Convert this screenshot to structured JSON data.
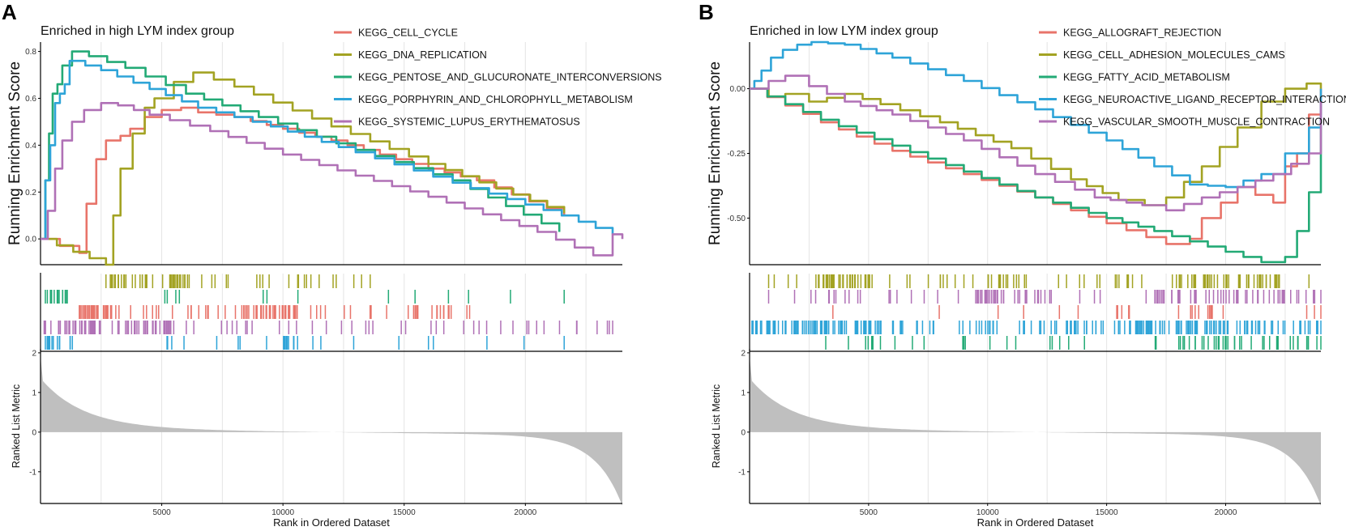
{
  "colors": {
    "red": "#E8746A",
    "olive": "#A3A323",
    "green": "#23AA76",
    "blue": "#2EA4D8",
    "purple": "#B071B6",
    "metric": "#BFBFBF",
    "grid": "#E4E4E4"
  },
  "chart_data": [
    {
      "type": "line",
      "panel_label": "A",
      "title": "Enriched in high LYM index group",
      "ylabel": "Running Enrichment Score",
      "ylim": [
        -0.11,
        0.84
      ],
      "yticks": [
        0.0,
        0.2,
        0.4,
        0.6,
        0.8
      ],
      "ytick_labels": [
        "0.0",
        "0.2",
        "0.4",
        "0.6",
        "0.8"
      ],
      "xlabel": "Rank in Ordered Dataset",
      "xlim": [
        0,
        24000
      ],
      "xticks": [
        5000,
        10000,
        15000,
        20000
      ],
      "xtick_labels": [
        "5000",
        "10000",
        "15000",
        "20000"
      ],
      "legend_position": "top",
      "series": [
        {
          "name": "KEGG_CELL_CYCLE",
          "color": "red",
          "x": [
            0,
            1600,
            1900,
            2300,
            2700,
            3300,
            3700,
            4300,
            5000,
            5800,
            6500,
            8000,
            10000,
            12000,
            14000,
            16000,
            18000,
            21600
          ],
          "y": [
            0,
            -0.06,
            0.15,
            0.34,
            0.42,
            0.44,
            0.47,
            0.52,
            0.55,
            0.56,
            0.54,
            0.52,
            0.47,
            0.42,
            0.36,
            0.3,
            0.25,
            0.1
          ]
        },
        {
          "name": "KEGG_DNA_REPLICATION",
          "color": "olive",
          "x": [
            0,
            2700,
            3000,
            3300,
            3800,
            4300,
            4700,
            5500,
            6300,
            8000,
            12000,
            16000,
            21600
          ],
          "y": [
            0,
            -0.11,
            0.1,
            0.3,
            0.45,
            0.56,
            0.6,
            0.67,
            0.71,
            0.65,
            0.48,
            0.32,
            0.11
          ]
        },
        {
          "name": "KEGG_PENTOSE_AND_GLUCURONATE_INTERCONVERSIONS",
          "color": "green",
          "x": [
            0,
            200,
            350,
            500,
            700,
            900,
            1300,
            2000,
            3500,
            6000,
            9000,
            13000,
            17000,
            21400
          ],
          "y": [
            0,
            0.25,
            0.45,
            0.62,
            0.66,
            0.74,
            0.8,
            0.78,
            0.73,
            0.62,
            0.52,
            0.38,
            0.25,
            0.03
          ]
        },
        {
          "name": "KEGG_PORPHYRIN_AND_CHLOROPHYLL_METABOLISM",
          "color": "blue",
          "x": [
            0,
            200,
            400,
            600,
            800,
            1000,
            1200,
            2500,
            4500,
            6500,
            9500,
            13000,
            17000,
            21500,
            23600
          ],
          "y": [
            0,
            0.25,
            0.4,
            0.58,
            0.62,
            0.66,
            0.76,
            0.72,
            0.64,
            0.56,
            0.48,
            0.37,
            0.24,
            0.1,
            0.02
          ]
        },
        {
          "name": "KEGG_SYSTEMIC_LUPUS_ERYTHEMATOSUS",
          "color": "purple",
          "x": [
            0,
            300,
            600,
            900,
            1300,
            1800,
            2500,
            3200,
            4500,
            7000,
            10000,
            13000,
            16000,
            19000,
            20500,
            22800,
            23600,
            24000
          ],
          "y": [
            0,
            0.12,
            0.3,
            0.42,
            0.5,
            0.55,
            0.58,
            0.57,
            0.53,
            0.46,
            0.36,
            0.27,
            0.18,
            0.08,
            0.03,
            -0.07,
            0.02,
            0.0
          ]
        }
      ],
      "hit_rows": [
        {
          "color": "olive",
          "start": 2700,
          "end": 13600,
          "count": 60,
          "seed": 11,
          "dense": [
            [
              2700,
              4800
            ],
            [
              5300,
              6200
            ]
          ]
        },
        {
          "color": "green",
          "start": 200,
          "end": 21600,
          "count": 26,
          "seed": 23,
          "dense": [
            [
              200,
              1200
            ]
          ]
        },
        {
          "color": "red",
          "start": 1600,
          "end": 17700,
          "count": 120,
          "seed": 37,
          "dense": [
            [
              1600,
              3300
            ],
            [
              8300,
              10500
            ]
          ]
        },
        {
          "color": "purple",
          "start": 150,
          "end": 23600,
          "count": 105,
          "seed": 41,
          "dense": [
            [
              150,
              2500
            ],
            [
              3500,
              5500
            ]
          ]
        },
        {
          "color": "blue",
          "start": 200,
          "end": 21600,
          "count": 42,
          "seed": 53,
          "dense": [
            [
              200,
              900
            ],
            [
              10000,
              10700
            ]
          ]
        }
      ],
      "metric": {
        "ylabel": "Ranked List Metric",
        "ylim": [
          -1.8,
          2.1
        ],
        "yticks": [
          -1,
          0,
          1,
          2
        ],
        "ytick_labels": [
          "-1",
          "0",
          "1",
          "2"
        ],
        "start_value": 1.2,
        "end_value": -1.7
      }
    },
    {
      "type": "line",
      "panel_label": "B",
      "title": "Enriched in low LYM index group",
      "ylabel": "Running Enrichment Score",
      "ylim": [
        -0.68,
        0.18
      ],
      "yticks": [
        -0.5,
        -0.25,
        0.0
      ],
      "ytick_labels": [
        "-0.50",
        "-0.25",
        "0.00"
      ],
      "xlabel": "Rank in Ordered Dataset",
      "xlim": [
        0,
        24000
      ],
      "xticks": [
        5000,
        10000,
        15000,
        20000
      ],
      "xtick_labels": [
        "5000",
        "10000",
        "15000",
        "20000"
      ],
      "legend_position": "top",
      "series": [
        {
          "name": "KEGG_ALLOGRAFT_REJECTION",
          "color": "red",
          "x": [
            0,
            3000,
            6000,
            9000,
            12000,
            15000,
            17500,
            18500,
            19000,
            19800,
            20500,
            22000,
            22500,
            23000,
            23500,
            24000
          ],
          "y": [
            0,
            -0.13,
            -0.24,
            -0.33,
            -0.42,
            -0.52,
            -0.6,
            -0.58,
            -0.5,
            -0.44,
            -0.38,
            -0.44,
            -0.3,
            -0.25,
            -0.1,
            0.0
          ]
        },
        {
          "name": "KEGG_CELL_ADHESION_MOLECULES_CAMS",
          "color": "olive",
          "x": [
            0,
            800,
            1500,
            2500,
            4000,
            5500,
            8000,
            11000,
            13500,
            15500,
            16600,
            17500,
            19000,
            20500,
            21500,
            22500,
            23400,
            24000
          ],
          "y": [
            0,
            -0.03,
            -0.02,
            -0.05,
            -0.02,
            -0.06,
            -0.13,
            -0.23,
            -0.35,
            -0.43,
            -0.45,
            -0.42,
            -0.3,
            -0.15,
            -0.05,
            0.0,
            0.02,
            0.0
          ]
        },
        {
          "name": "KEGG_FATTY_ACID_METABOLISM",
          "color": "green",
          "x": [
            0,
            3000,
            6000,
            9000,
            12000,
            15000,
            17000,
            18500,
            20000,
            21500,
            22500,
            23000,
            23500,
            24000
          ],
          "y": [
            0,
            -0.12,
            -0.22,
            -0.32,
            -0.42,
            -0.5,
            -0.55,
            -0.59,
            -0.63,
            -0.67,
            -0.65,
            -0.55,
            -0.4,
            -0.15
          ]
        },
        {
          "name": "KEGG_NEUROACTIVE_LIGAND_RECEPTOR_INTERACTION",
          "color": "blue",
          "x": [
            0,
            200,
            500,
            900,
            1400,
            2000,
            2600,
            4000,
            6000,
            9000,
            12000,
            15000,
            17000,
            18500,
            20000,
            21500,
            22500,
            23500,
            24000
          ],
          "y": [
            0,
            0.03,
            0.07,
            0.12,
            0.15,
            0.17,
            0.18,
            0.17,
            0.12,
            0.03,
            -0.08,
            -0.2,
            -0.3,
            -0.37,
            -0.38,
            -0.33,
            -0.25,
            -0.15,
            0.0
          ]
        },
        {
          "name": "KEGG_VASCULAR_SMOOTH_MUSCLE_CONTRACTION",
          "color": "purple",
          "x": [
            0,
            800,
            1500,
            2500,
            4000,
            6000,
            9000,
            12000,
            14500,
            16500,
            17500,
            19000,
            20500,
            22000,
            23500,
            24000
          ],
          "y": [
            0,
            0.03,
            0.05,
            0.01,
            -0.05,
            -0.1,
            -0.2,
            -0.33,
            -0.42,
            -0.45,
            -0.47,
            -0.42,
            -0.38,
            -0.33,
            -0.25,
            -0.05
          ]
        }
      ],
      "hit_rows": [
        {
          "color": "olive",
          "start": 800,
          "end": 23500,
          "count": 130,
          "seed": 61,
          "dense": [
            [
              2800,
              5200
            ],
            [
              17500,
              22500
            ]
          ]
        },
        {
          "color": "purple",
          "start": 800,
          "end": 24000,
          "count": 110,
          "seed": 67,
          "dense": [
            [
              9500,
              12500
            ],
            [
              17000,
              24000
            ]
          ]
        },
        {
          "color": "red",
          "start": 3500,
          "end": 24000,
          "count": 24,
          "seed": 71,
          "dense": [
            [
              18000,
              20000
            ]
          ]
        },
        {
          "color": "blue",
          "start": 100,
          "end": 24000,
          "count": 230,
          "seed": 73,
          "dense": [
            [
              100,
              5500
            ],
            [
              12500,
              24000
            ]
          ]
        },
        {
          "color": "green",
          "start": 3200,
          "end": 24000,
          "count": 60,
          "seed": 79,
          "dense": [
            [
              18000,
              24000
            ]
          ]
        }
      ],
      "metric": {
        "ylabel": "Ranked List Metric",
        "ylim": [
          -1.8,
          2.1
        ],
        "yticks": [
          -1,
          0,
          1,
          2
        ],
        "ytick_labels": [
          "-1",
          "0",
          "1",
          "2"
        ],
        "start_value": 1.2,
        "end_value": -1.7
      }
    }
  ]
}
